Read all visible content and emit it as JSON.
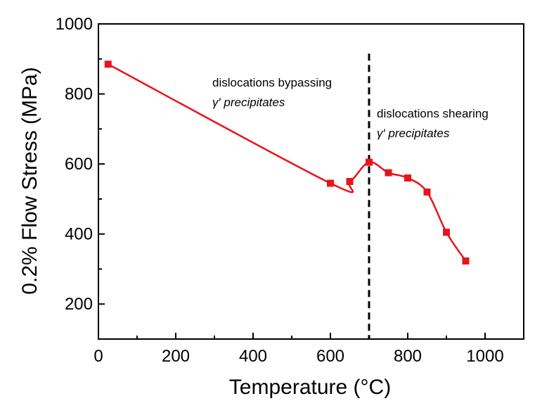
{
  "chart_data": {
    "type": "line",
    "xlabel": "Temperature (°C)",
    "ylabel": "0.2% Flow Stress (MPa)",
    "xlim": [
      0,
      1100
    ],
    "ylim": [
      100,
      1000
    ],
    "x_ticks": [
      0,
      200,
      400,
      600,
      800,
      1000
    ],
    "y_ticks": [
      200,
      400,
      600,
      800,
      1000
    ],
    "x_tick_labels": [
      "0",
      "200",
      "400",
      "600",
      "800",
      "1000"
    ],
    "y_tick_labels": [
      "200",
      "400",
      "600",
      "800",
      "1000"
    ],
    "grid": false,
    "series": [
      {
        "color": "#e8141b",
        "marker": "square",
        "x": [
          25,
          600,
          650,
          700,
          750,
          800,
          850,
          900,
          950
        ],
        "y": [
          885,
          545,
          550,
          605,
          575,
          560,
          520,
          405,
          323
        ]
      }
    ],
    "reference_line": {
      "x": 700,
      "style": "dashed",
      "color": "#000000"
    },
    "annotations": [
      {
        "lines": [
          "dislocations bypassing",
          "γ′ precipitates"
        ]
      },
      {
        "lines": [
          "dislocations shearing",
          "γ′ precipitates"
        ]
      }
    ]
  }
}
